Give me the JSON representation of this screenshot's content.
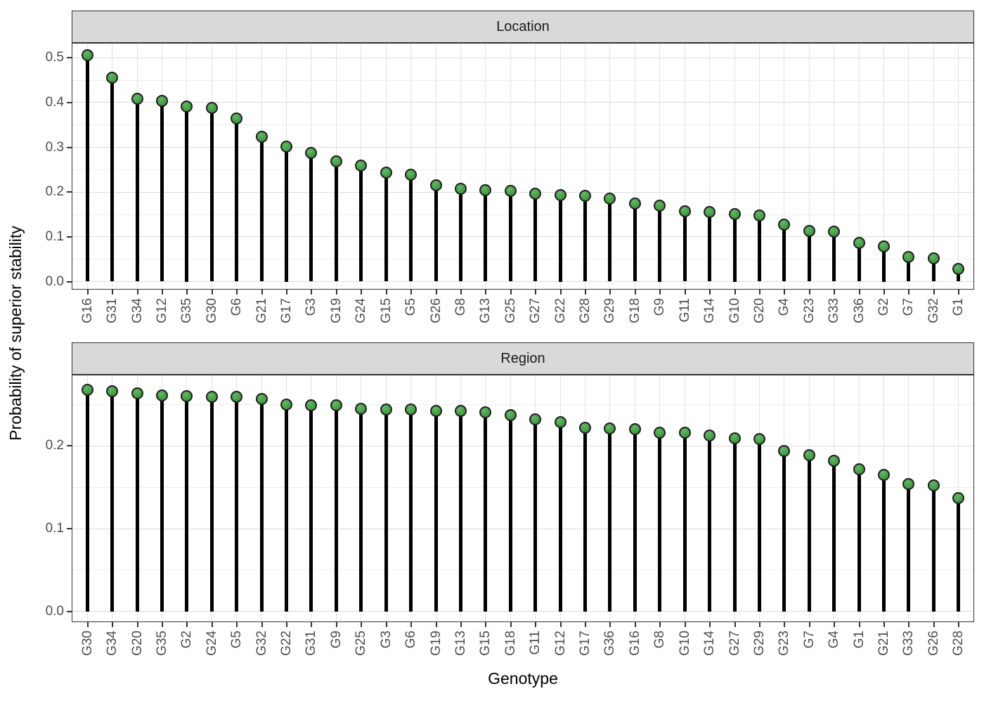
{
  "figure": {
    "y_axis_title": "Probability of superior stability",
    "x_axis_title": "Genotype"
  },
  "style": {
    "dot_fill": "#4a9e4a",
    "dot_stroke": "#1f1f1f",
    "stem_color": "#000000",
    "strip_fill": "#d9d9d9",
    "panel_border": "#333333",
    "grid_major": "#dbdbdb",
    "grid_minor": "#eeeeee",
    "grid_vertical": "#e2e2e2",
    "tick_label_color": "#4d4d4d"
  },
  "chart_data": [
    {
      "type": "lollipop",
      "facet_label": "Location",
      "xlabel": "Genotype",
      "ylabel": "Probability of superior stability",
      "grid": true,
      "legend": "none",
      "ylim": [
        -0.0165,
        0.532
      ],
      "yticks": [
        0.0,
        0.1,
        0.2,
        0.3,
        0.4,
        0.5
      ],
      "ytick_labels": [
        "0.0",
        "0.1",
        "0.2",
        "0.3",
        "0.4",
        "0.5"
      ],
      "minor_yticks": [
        0.05,
        0.15,
        0.25,
        0.35,
        0.45
      ],
      "categories": [
        "G16",
        "G31",
        "G34",
        "G12",
        "G35",
        "G30",
        "G6",
        "G21",
        "G17",
        "G3",
        "G19",
        "G24",
        "G15",
        "G5",
        "G26",
        "G8",
        "G13",
        "G25",
        "G27",
        "G22",
        "G28",
        "G29",
        "G18",
        "G9",
        "G11",
        "G14",
        "G10",
        "G20",
        "G4",
        "G23",
        "G33",
        "G36",
        "G2",
        "G7",
        "G32",
        "G1"
      ],
      "values": [
        0.506,
        0.455,
        0.408,
        0.404,
        0.392,
        0.388,
        0.364,
        0.323,
        0.302,
        0.287,
        0.268,
        0.259,
        0.244,
        0.239,
        0.216,
        0.208,
        0.204,
        0.202,
        0.196,
        0.194,
        0.192,
        0.186,
        0.175,
        0.169,
        0.157,
        0.155,
        0.151,
        0.147,
        0.127,
        0.113,
        0.111,
        0.087,
        0.079,
        0.055,
        0.052,
        0.029
      ]
    },
    {
      "type": "lollipop",
      "facet_label": "Region",
      "xlabel": "Genotype",
      "ylabel": "Probability of superior stability",
      "grid": true,
      "legend": "none",
      "ylim": [
        -0.0121,
        0.2853
      ],
      "yticks": [
        0.0,
        0.1,
        0.2
      ],
      "ytick_labels": [
        "0.0",
        "0.1",
        "0.2"
      ],
      "minor_yticks": [
        0.05,
        0.15,
        0.25
      ],
      "categories": [
        "G30",
        "G34",
        "G20",
        "G35",
        "G2",
        "G24",
        "G5",
        "G32",
        "G22",
        "G31",
        "G9",
        "G25",
        "G3",
        "G6",
        "G19",
        "G13",
        "G15",
        "G18",
        "G11",
        "G12",
        "G17",
        "G36",
        "G16",
        "G8",
        "G10",
        "G14",
        "G27",
        "G29",
        "G23",
        "G7",
        "G4",
        "G1",
        "G21",
        "G33",
        "G26",
        "G28"
      ],
      "values": [
        0.268,
        0.266,
        0.264,
        0.261,
        0.26,
        0.259,
        0.259,
        0.257,
        0.25,
        0.249,
        0.249,
        0.245,
        0.244,
        0.244,
        0.242,
        0.242,
        0.241,
        0.237,
        0.232,
        0.229,
        0.222,
        0.221,
        0.22,
        0.216,
        0.216,
        0.213,
        0.209,
        0.208,
        0.194,
        0.189,
        0.182,
        0.172,
        0.165,
        0.154,
        0.152,
        0.137
      ]
    }
  ]
}
